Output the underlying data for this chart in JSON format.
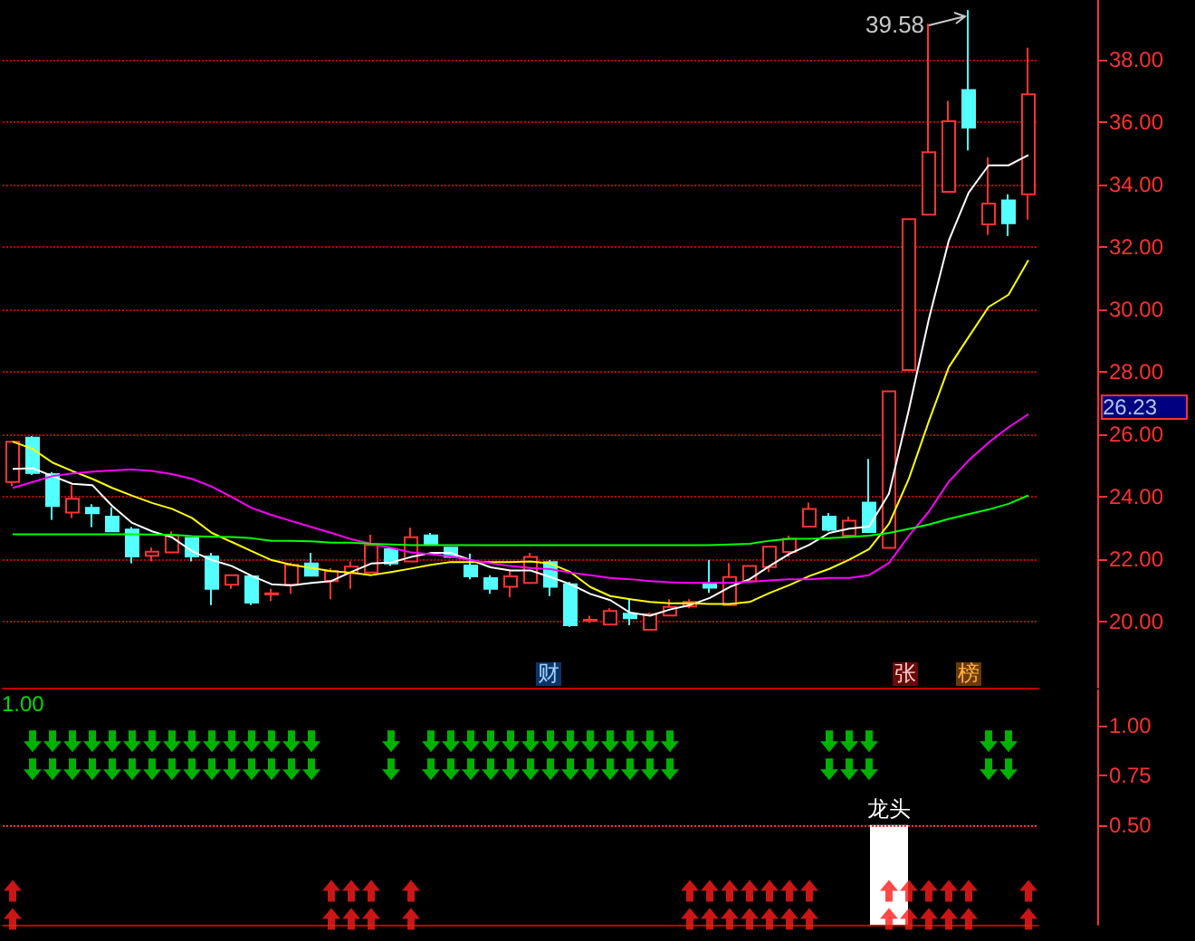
{
  "chart_data": [
    {
      "type": "candlestick",
      "categories": [
        null,
        null,
        null,
        null,
        null,
        null,
        null,
        null,
        null,
        null,
        null,
        null,
        null,
        null,
        null,
        null,
        null,
        null,
        null,
        null,
        null,
        null,
        null,
        null,
        null,
        null,
        null,
        null,
        null,
        null,
        null,
        null,
        null,
        null,
        null,
        null,
        null,
        null,
        null,
        null,
        null,
        null,
        null,
        null,
        null,
        null,
        null,
        null,
        null,
        null,
        null,
        null
      ],
      "ylim": [
        17.9,
        39.9
      ],
      "yticks": [
        {
          "value": 20,
          "label": "20.00"
        },
        {
          "value": 22,
          "label": "22.00"
        },
        {
          "value": 24,
          "label": "24.00"
        },
        {
          "value": 26,
          "label": "26.00"
        },
        {
          "value": 28,
          "label": "28.00"
        },
        {
          "value": 30,
          "label": "30.00"
        },
        {
          "value": 32,
          "label": "32.00"
        },
        {
          "value": 34,
          "label": "34.00"
        },
        {
          "value": 36,
          "label": "36.00"
        },
        {
          "value": 38,
          "label": "38.00"
        }
      ],
      "grid": "y",
      "tick_labels": "y",
      "series": [
        {
          "type": "line",
          "color": "#ffffff",
          "values": [
            24.9,
            24.92,
            24.67,
            24.42,
            24.38,
            23.71,
            23.17,
            22.9,
            22.71,
            22.27,
            21.98,
            21.79,
            21.48,
            21.21,
            21.17,
            21.25,
            21.31,
            21.6,
            21.87,
            21.9,
            22.08,
            22.21,
            22.21,
            21.98,
            21.75,
            21.65,
            21.65,
            21.44,
            21.21,
            20.9,
            20.7,
            20.3,
            20.2,
            20.4,
            20.54,
            20.77,
            21.12,
            21.37,
            21.79,
            22.18,
            22.47,
            22.85,
            22.99,
            23.05,
            24.11,
            26.8,
            29.69,
            32.2,
            33.74,
            34.61,
            34.61,
            34.94
          ]
        },
        {
          "type": "line",
          "color": "#ffff00",
          "values": [
            25.77,
            25.54,
            25.1,
            24.83,
            24.58,
            24.29,
            24.04,
            23.81,
            23.62,
            23.33,
            22.85,
            22.56,
            22.27,
            21.98,
            21.83,
            21.73,
            21.63,
            21.58,
            21.5,
            21.6,
            21.71,
            21.83,
            21.92,
            21.92,
            21.92,
            21.92,
            21.94,
            21.87,
            21.6,
            21.12,
            20.83,
            20.73,
            20.64,
            20.6,
            20.6,
            20.58,
            20.58,
            20.64,
            20.93,
            21.18,
            21.47,
            21.7,
            21.99,
            22.33,
            23.14,
            24.59,
            26.42,
            28.15,
            29.12,
            30.08,
            30.47,
            31.58
          ]
        },
        {
          "type": "line",
          "color": "#ff00ff",
          "values": [
            24.29,
            24.48,
            24.67,
            24.75,
            24.81,
            24.85,
            24.88,
            24.83,
            24.73,
            24.58,
            24.33,
            24.0,
            23.65,
            23.42,
            23.23,
            23.04,
            22.85,
            22.65,
            22.5,
            22.37,
            22.23,
            22.17,
            22.1,
            21.98,
            21.88,
            21.79,
            21.73,
            21.69,
            21.58,
            21.5,
            21.41,
            21.37,
            21.31,
            21.27,
            21.25,
            21.25,
            21.25,
            21.29,
            21.33,
            21.37,
            21.37,
            21.41,
            21.41,
            21.5,
            21.89,
            22.76,
            23.53,
            24.49,
            25.17,
            25.74,
            26.23,
            26.65
          ]
        },
        {
          "type": "line",
          "color": "#00ff00",
          "values": [
            22.81,
            22.81,
            22.81,
            22.81,
            22.81,
            22.81,
            22.81,
            22.8,
            22.79,
            22.75,
            22.73,
            22.72,
            22.68,
            22.6,
            22.6,
            22.58,
            22.54,
            22.54,
            22.5,
            22.48,
            22.46,
            22.46,
            22.46,
            22.46,
            22.46,
            22.46,
            22.46,
            22.46,
            22.46,
            22.46,
            22.46,
            22.46,
            22.46,
            22.46,
            22.46,
            22.46,
            22.48,
            22.5,
            22.6,
            22.66,
            22.66,
            22.68,
            22.72,
            22.76,
            22.85,
            22.98,
            23.12,
            23.3,
            23.45,
            23.6,
            23.78,
            24.05
          ]
        },
        {
          "ohlc": [
            [
              24.48,
              25.8,
              24.35,
              25.77
            ],
            [
              25.9,
              25.95,
              24.7,
              24.77
            ],
            [
              24.73,
              24.8,
              23.27,
              23.71
            ],
            [
              23.5,
              24.38,
              23.33,
              23.94
            ],
            [
              23.65,
              23.77,
              23.04,
              23.48
            ],
            [
              23.37,
              23.67,
              22.9,
              22.9
            ],
            [
              22.96,
              23.04,
              21.88,
              22.1
            ],
            [
              22.12,
              22.38,
              21.94,
              22.25
            ],
            [
              22.23,
              22.9,
              22.23,
              22.77
            ],
            [
              22.69,
              22.69,
              21.94,
              22.1
            ],
            [
              22.1,
              22.21,
              20.54,
              21.06
            ],
            [
              21.19,
              21.5,
              21.06,
              21.5
            ],
            [
              21.46,
              21.46,
              20.54,
              20.62
            ],
            [
              20.88,
              21.06,
              20.67,
              20.92
            ],
            [
              21.19,
              21.9,
              20.9,
              21.83
            ],
            [
              21.87,
              22.21,
              21.48,
              21.48
            ],
            [
              21.31,
              21.73,
              20.73,
              21.63
            ],
            [
              21.56,
              21.94,
              21.06,
              21.77
            ],
            [
              21.58,
              22.79,
              21.58,
              22.46
            ],
            [
              22.33,
              22.35,
              21.79,
              21.87
            ],
            [
              21.94,
              23.02,
              21.94,
              22.71
            ],
            [
              22.77,
              22.85,
              22.48,
              22.48
            ],
            [
              22.38,
              22.4,
              22.05,
              22.08
            ],
            [
              21.81,
              22.19,
              21.37,
              21.46
            ],
            [
              21.4,
              21.5,
              20.9,
              21.06
            ],
            [
              21.13,
              21.65,
              20.79,
              21.46
            ],
            [
              21.25,
              22.21,
              21.25,
              22.08
            ],
            [
              21.92,
              21.98,
              20.83,
              21.13
            ],
            [
              21.21,
              21.29,
              19.85,
              19.9
            ],
            [
              20.04,
              20.2,
              19.97,
              20.07
            ],
            [
              19.92,
              20.44,
              19.92,
              20.35
            ],
            [
              20.27,
              20.71,
              19.9,
              20.12
            ],
            [
              19.75,
              20.3,
              19.75,
              20.25
            ],
            [
              20.21,
              20.73,
              20.21,
              20.48
            ],
            [
              20.5,
              20.73,
              20.44,
              20.64
            ],
            [
              21.2,
              21.99,
              20.93,
              21.1
            ],
            [
              20.54,
              21.89,
              20.54,
              21.44
            ],
            [
              21.31,
              21.8,
              21.3,
              21.79
            ],
            [
              21.76,
              22.41,
              21.6,
              22.41
            ],
            [
              22.24,
              22.76,
              22.08,
              22.66
            ],
            [
              23.05,
              23.82,
              23.05,
              23.62
            ],
            [
              23.37,
              23.49,
              22.9,
              22.95
            ],
            [
              22.76,
              23.37,
              22.76,
              23.24
            ],
            [
              23.82,
              25.22,
              22.88,
              22.88
            ],
            [
              22.37,
              27.38,
              22.37,
              27.38
            ],
            [
              28.06,
              32.89,
              28.06,
              32.89
            ],
            [
              33.03,
              39.14,
              33.03,
              35.03
            ],
            [
              33.76,
              36.67,
              33.76,
              36.02
            ],
            [
              37.02,
              39.58,
              35.09,
              35.82
            ],
            [
              32.72,
              34.86,
              32.39,
              33.39
            ],
            [
              33.49,
              33.68,
              32.35,
              32.76
            ],
            [
              33.68,
              38.37,
              32.87,
              36.88
            ]
          ],
          "colors": [
            "#ff3232",
            "#54ffff",
            "#54ffff",
            "#ff3232",
            "#54ffff",
            "#54ffff",
            "#54ffff",
            "#ff3232",
            "#ff3232",
            "#54ffff",
            "#54ffff",
            "#ff3232",
            "#54ffff",
            "#ff3232",
            "#ff3232",
            "#54ffff",
            "#ff3232",
            "#ff3232",
            "#ff3232",
            "#54ffff",
            "#ff3232",
            "#54ffff",
            "#54ffff",
            "#54ffff",
            "#54ffff",
            "#ff3232",
            "#ff3232",
            "#54ffff",
            "#54ffff",
            "#ff3232",
            "#ff3232",
            "#54ffff",
            "#ff3232",
            "#ff3232",
            "#ff3232",
            "#54ffff",
            "#ff3232",
            "#ff3232",
            "#ff3232",
            "#ff3232",
            "#ff3232",
            "#54ffff",
            "#ff3232",
            "#54ffff",
            "#ff3232",
            "#ff3232",
            "#ff3232",
            "#ff3232",
            "#54ffff",
            "#ff3232",
            "#54ffff",
            "#ff3232"
          ]
        }
      ],
      "annotations": [
        "39.58",
        "26.23",
        "财",
        "张",
        "榜"
      ]
    },
    {
      "type": "scatter",
      "categories": [
        null,
        null,
        null,
        null,
        null,
        null,
        null,
        null,
        null,
        null,
        null,
        null,
        null,
        null,
        null,
        null,
        null,
        null,
        null,
        null,
        null,
        null,
        null,
        null,
        null,
        null,
        null,
        null,
        null,
        null,
        null,
        null,
        null,
        null,
        null,
        null,
        null,
        null,
        null,
        null,
        null,
        null,
        null,
        null,
        null,
        null,
        null,
        null,
        null,
        null,
        null,
        null
      ],
      "ylim": [
        0,
        1.18
      ],
      "yticks": [
        {
          "value": 0.5,
          "label": "0.50"
        },
        {
          "value": 0.75,
          "label": "0.75"
        },
        {
          "value": 1,
          "label": "1.00"
        }
      ],
      "tick_labels": "y",
      "marker": "triangle",
      "ref_lines": [
        {
          "axis": "y",
          "value": 0.5,
          "color": "#ff3030",
          "line_style": "dotted"
        }
      ],
      "series": [
        {
          "type": "bar",
          "color": "#ffffff",
          "values": [
            null,
            null,
            null,
            null,
            null,
            null,
            null,
            null,
            null,
            null,
            null,
            null,
            null,
            null,
            null,
            null,
            null,
            null,
            null,
            null,
            null,
            null,
            null,
            null,
            null,
            null,
            null,
            null,
            null,
            null,
            null,
            null,
            null,
            null,
            null,
            null,
            null,
            null,
            null,
            null,
            null,
            null,
            null,
            null,
            0.5,
            null,
            null,
            null,
            null,
            null,
            null,
            null
          ]
        },
        {
          "color": "#00dd00",
          "values": [
            null,
            0.92,
            0.92,
            0.92,
            0.92,
            0.92,
            0.92,
            0.92,
            0.92,
            0.92,
            0.92,
            0.92,
            0.92,
            0.92,
            0.92,
            0.92,
            null,
            null,
            null,
            0.92,
            null,
            0.92,
            0.92,
            0.92,
            0.92,
            0.92,
            0.92,
            0.92,
            0.92,
            0.92,
            0.92,
            0.92,
            0.92,
            0.92,
            null,
            null,
            null,
            null,
            null,
            null,
            null,
            0.92,
            0.92,
            0.92,
            null,
            null,
            null,
            null,
            null,
            0.92,
            0.92,
            null
          ]
        },
        {
          "color": "#00dd00",
          "values": [
            null,
            0.78,
            0.78,
            0.78,
            0.78,
            0.78,
            0.78,
            0.78,
            0.78,
            0.78,
            0.78,
            0.78,
            0.78,
            0.78,
            0.78,
            0.78,
            null,
            null,
            null,
            0.78,
            null,
            0.78,
            0.78,
            0.78,
            0.78,
            0.78,
            0.78,
            0.78,
            0.78,
            0.78,
            0.78,
            0.78,
            0.78,
            0.78,
            null,
            null,
            null,
            null,
            null,
            null,
            null,
            0.78,
            0.78,
            0.78,
            null,
            null,
            null,
            null,
            null,
            0.78,
            0.78,
            null
          ]
        },
        {
          "color": "#ff1a1a",
          "values": [
            0.17,
            null,
            null,
            null,
            null,
            null,
            null,
            null,
            null,
            null,
            null,
            null,
            null,
            null,
            null,
            null,
            0.17,
            0.17,
            0.17,
            null,
            0.17,
            null,
            null,
            null,
            null,
            null,
            null,
            null,
            null,
            null,
            null,
            null,
            null,
            null,
            0.17,
            0.17,
            0.17,
            0.17,
            0.17,
            0.17,
            0.17,
            null,
            null,
            null,
            0.17,
            0.17,
            0.17,
            0.17,
            0.17,
            null,
            null,
            0.17
          ]
        },
        {
          "color": "#ff1a1a",
          "values": [
            0.03,
            null,
            null,
            null,
            null,
            null,
            null,
            null,
            null,
            null,
            null,
            null,
            null,
            null,
            null,
            null,
            0.03,
            0.03,
            0.03,
            null,
            0.03,
            null,
            null,
            null,
            null,
            null,
            null,
            null,
            null,
            null,
            null,
            null,
            null,
            null,
            0.03,
            0.03,
            0.03,
            0.03,
            0.03,
            0.03,
            0.03,
            null,
            null,
            null,
            0.03,
            0.03,
            0.03,
            0.03,
            0.03,
            null,
            null,
            0.03
          ]
        }
      ],
      "annotations": [
        "1.00",
        {
          "text": "龙头",
          "y": 0.5
        }
      ]
    }
  ]
}
